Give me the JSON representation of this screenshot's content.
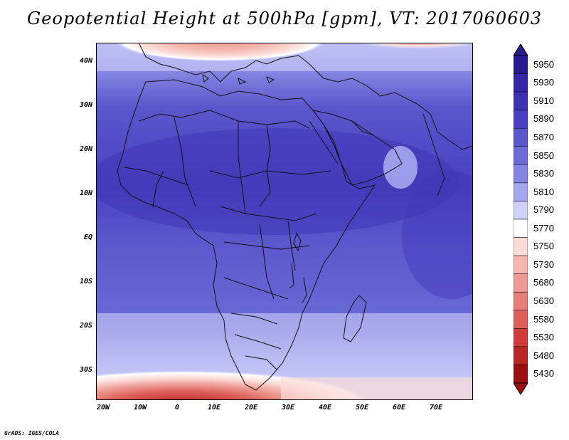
{
  "title": "Geopotential Height at 500hPa [gpm], VT: 2017060603",
  "credit": "GrADS: IGES/COLA",
  "y_axis": {
    "ticks": [
      "40N",
      "30N",
      "20N",
      "10N",
      "EQ",
      "10S",
      "20S",
      "30S"
    ]
  },
  "x_axis": {
    "ticks": [
      "20W",
      "10W",
      "0",
      "10E",
      "20E",
      "30E",
      "40E",
      "50E",
      "60E",
      "70E"
    ]
  },
  "colorbar": {
    "levels": [
      "5950",
      "5930",
      "5910",
      "5890",
      "5870",
      "5850",
      "5830",
      "5810",
      "5790",
      "5770",
      "5750",
      "5730",
      "5680",
      "5630",
      "5580",
      "5530",
      "5480",
      "5430"
    ],
    "colors": [
      "#2a1a8f",
      "#3526a8",
      "#3d33b4",
      "#4840c0",
      "#5a57cc",
      "#6c6bd8",
      "#8586e2",
      "#a5a7ee",
      "#cfd1f8",
      "#ffffff",
      "#fbdcd8",
      "#f5b7b0",
      "#ee9b93",
      "#e57f78",
      "#dd5f5a",
      "#cf3b3b",
      "#b82626",
      "#9b1111"
    ]
  },
  "map": {
    "region": "Africa and surrounding areas",
    "colors": {
      "high": "#5a57cc",
      "mid": "#6c6bd8",
      "light": "#a5a7ee",
      "pale": "#e9e9ff",
      "warm": "#f5b7b0",
      "hot": "#cf3b3b",
      "line": "#111111"
    }
  }
}
